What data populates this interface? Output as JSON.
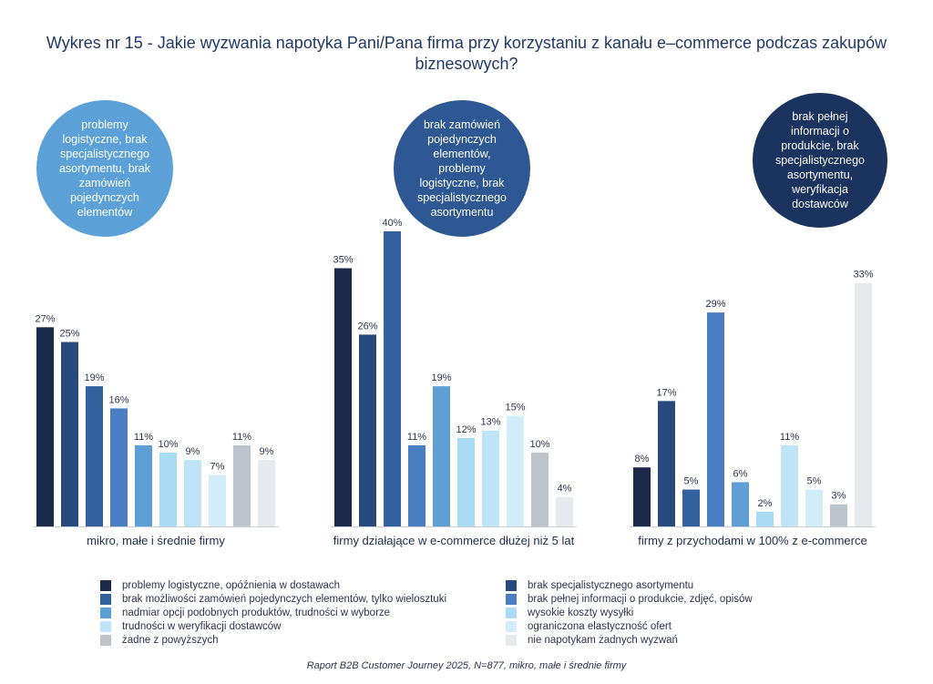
{
  "title": "Wykres nr 15 - Jakie wyzwania napotyka Pani/Pana firma przy korzystaniu z kanału e–commerce podczas zakupów biznesowych?",
  "source": "Raport B2B Customer Journey 2025, N=877, mikro, małe i średnie firmy",
  "bubbles": [
    {
      "text": "problemy logistyczne, brak specjalistycznego asortymentu, brak zamówień pojedynczych elementów",
      "color": "#5ba1d8"
    },
    {
      "text": "brak zamówień pojedynczych elementów, problemy logistyczne, brak specjalistycznego asortymentu",
      "color": "#2d5894"
    },
    {
      "text": "brak pełnej informacji o produkcie, brak specjalistycznego asortymentu, weryfikacja dostawców",
      "color": "#1b345f"
    }
  ],
  "legend": [
    {
      "label": "problemy logistyczne, opóźnienia w dostawach",
      "color": "#1b2a4a"
    },
    {
      "label": "brak specjalistycznego asortymentu",
      "color": "#274a7c"
    },
    {
      "label": "brak możliwości zamówień pojedynczych elementów, tylko wielosztuki",
      "color": "#33609e"
    },
    {
      "label": "brak pełnej informacji o produkcie, zdjęć, opisów",
      "color": "#4a7ec3"
    },
    {
      "label": "nadmiar opcji podobnych produktów, trudności w wyborze",
      "color": "#5d9fd5"
    },
    {
      "label": "wysokie koszty wysyłki",
      "color": "#a9dbf5"
    },
    {
      "label": "trudności w weryfikacji dostawców",
      "color": "#bfe4f8"
    },
    {
      "label": "ograniczona elastyczność ofert",
      "color": "#d3ecfa"
    },
    {
      "label": "żadne z powyższych",
      "color": "#bcc3ca"
    },
    {
      "label": "nie napotykam żadnych wyzwań",
      "color": "#e6e9ee"
    }
  ],
  "chart_data": {
    "type": "bar",
    "ylim": [
      0,
      45
    ],
    "value_suffix": "%",
    "groups": [
      {
        "name": "mikro, małe i średnie firmy",
        "values": [
          27,
          25,
          19,
          16,
          11,
          10,
          9,
          7,
          11,
          9
        ]
      },
      {
        "name": "firmy działające w e-commerce dłużej niż 5 lat",
        "values": [
          35,
          26,
          40,
          11,
          19,
          12,
          13,
          15,
          10,
          4
        ]
      },
      {
        "name": "firmy z przychodami w 100% z e-commerce",
        "values": [
          8,
          17,
          5,
          29,
          6,
          2,
          11,
          5,
          3,
          33
        ]
      }
    ]
  }
}
